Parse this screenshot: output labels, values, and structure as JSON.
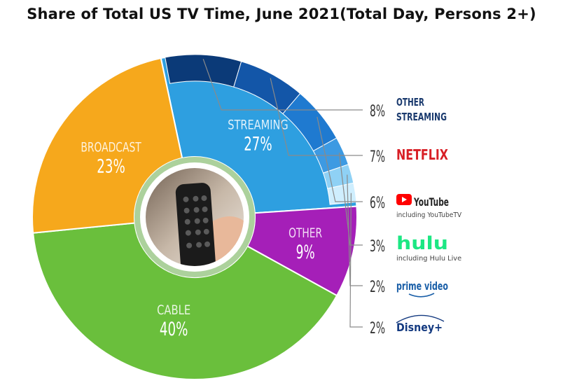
{
  "title": "Share of Total US TV Time, June 2021(Total Day, Persons 2+)",
  "chart_data": {
    "type": "pie",
    "title": "Share of Total US TV Time, June 2021(Total Day, Persons 2+)",
    "slices": [
      {
        "label": "STREAMING",
        "value": 27,
        "display": "27%",
        "color": "#2e9fe0"
      },
      {
        "label": "OTHER",
        "value": 9,
        "display": "9%",
        "color": "#a51fb8"
      },
      {
        "label": "CABLE",
        "value": 40,
        "display": "40%",
        "color": "#6abf3c"
      },
      {
        "label": "BROADCAST",
        "value": 23,
        "display": "23%",
        "color": "#f6a81c"
      }
    ],
    "streaming_breakdown": [
      {
        "label": "OTHER STREAMING",
        "label_lines": [
          "OTHER",
          "STREAMING"
        ],
        "value": 8,
        "display": "8%",
        "color": "#0b3a78"
      },
      {
        "label": "NETFLIX",
        "value": 7,
        "display": "7%",
        "color": "#1356a8",
        "text_color": "#d81f26"
      },
      {
        "label": "YouTube",
        "sublabel": "including YouTubeTV",
        "value": 6,
        "display": "6%",
        "color": "#1f7ad0"
      },
      {
        "label": "hulu",
        "sublabel": "including Hulu Live",
        "value": 3,
        "display": "3%",
        "color": "#3d9ae2",
        "text_color": "#1ce783"
      },
      {
        "label": "prime video",
        "value": 2,
        "display": "2%",
        "color": "#8fd1f5"
      },
      {
        "label": "Disney+",
        "value": 2,
        "display": "2%",
        "color": "#cfeefe"
      }
    ]
  }
}
